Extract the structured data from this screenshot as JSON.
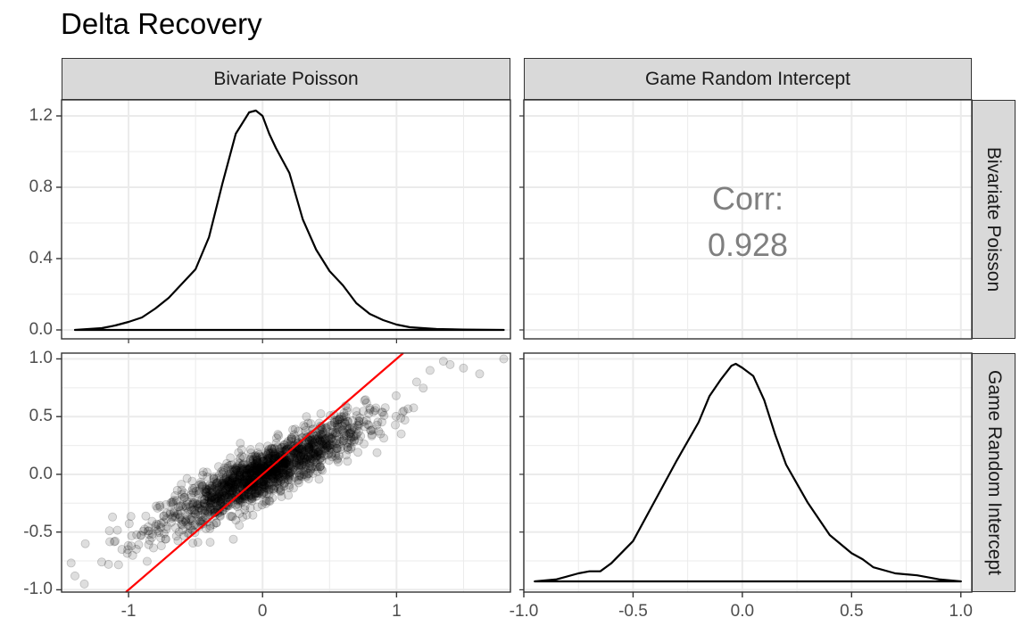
{
  "title": "Delta Recovery",
  "columns": [
    "Bivariate Poisson",
    "Game Random Intercept"
  ],
  "rows": [
    "Bivariate Poisson",
    "Game Random Intercept"
  ],
  "correlation": {
    "label": "Corr:",
    "value": "0.928"
  },
  "colors": {
    "strip": "#d9d9d9",
    "grid": "#ebebeb",
    "identity_line": "#ff0000",
    "points": "#000000",
    "text": "#4d4d4d"
  },
  "chart_data": [
    {
      "panel": "density-bivariate-poisson",
      "type": "area",
      "ylim": [
        0,
        1.25
      ],
      "yticks": [
        "0.0",
        "0.4",
        "0.8",
        "1.2"
      ],
      "x": [
        -1.4,
        -1.2,
        -1.1,
        -1.0,
        -0.9,
        -0.8,
        -0.7,
        -0.6,
        -0.5,
        -0.4,
        -0.3,
        -0.2,
        -0.1,
        -0.05,
        0.0,
        0.05,
        0.1,
        0.2,
        0.3,
        0.4,
        0.5,
        0.6,
        0.7,
        0.8,
        0.9,
        1.0,
        1.1,
        1.3,
        1.5,
        1.8
      ],
      "y": [
        0.0,
        0.01,
        0.025,
        0.045,
        0.07,
        0.12,
        0.18,
        0.26,
        0.34,
        0.52,
        0.82,
        1.1,
        1.22,
        1.23,
        1.2,
        1.1,
        1.02,
        0.88,
        0.62,
        0.45,
        0.33,
        0.25,
        0.15,
        0.09,
        0.055,
        0.03,
        0.015,
        0.005,
        0.002,
        0.0
      ]
    },
    {
      "panel": "scatter",
      "type": "scatter",
      "xlim": [
        -1.5,
        1.85
      ],
      "ylim": [
        -1.02,
        1.05
      ],
      "xticks": [
        "-1",
        "0",
        "1"
      ],
      "yticks": [
        "-1.0",
        "-0.5",
        "0.0",
        "0.5",
        "1.0"
      ],
      "reference_line": {
        "slope": 1,
        "intercept": 0
      },
      "series": [
        {
          "name": "",
          "fit_slope": 0.55,
          "sd": 0.11,
          "x_sd": 0.38,
          "n": 1600
        }
      ],
      "extreme_points": [
        [
          -1.4,
          -0.88
        ],
        [
          -1.33,
          -0.95
        ],
        [
          -1.2,
          -0.76
        ],
        [
          -1.15,
          -0.78
        ],
        [
          -1.12,
          -0.37
        ],
        [
          -1.05,
          -0.65
        ],
        [
          -0.98,
          -0.62
        ],
        [
          1.35,
          0.98
        ],
        [
          1.4,
          0.95
        ],
        [
          1.5,
          0.92
        ],
        [
          1.62,
          0.87
        ],
        [
          1.8,
          1.0
        ],
        [
          1.25,
          0.9
        ],
        [
          1.15,
          0.8
        ],
        [
          0.88,
          0.35
        ],
        [
          0.65,
          0.3
        ]
      ]
    },
    {
      "panel": "density-game-random-intercept",
      "type": "area",
      "xlim": [
        -1.0,
        1.05
      ],
      "xticks": [
        "-1.0",
        "-0.5",
        "0.0",
        "0.5",
        "1.0"
      ],
      "x": [
        -0.95,
        -0.85,
        -0.75,
        -0.7,
        -0.65,
        -0.6,
        -0.5,
        -0.4,
        -0.3,
        -0.2,
        -0.15,
        -0.1,
        -0.05,
        -0.03,
        0.0,
        0.05,
        0.1,
        0.15,
        0.2,
        0.3,
        0.4,
        0.5,
        0.55,
        0.6,
        0.7,
        0.8,
        0.9,
        1.0
      ],
      "y": [
        0.0,
        0.01,
        0.04,
        0.05,
        0.05,
        0.09,
        0.2,
        0.4,
        0.6,
        0.79,
        0.92,
        1.0,
        1.07,
        1.08,
        1.06,
        1.02,
        0.9,
        0.73,
        0.58,
        0.39,
        0.23,
        0.14,
        0.11,
        0.07,
        0.04,
        0.03,
        0.01,
        0.0
      ]
    }
  ]
}
